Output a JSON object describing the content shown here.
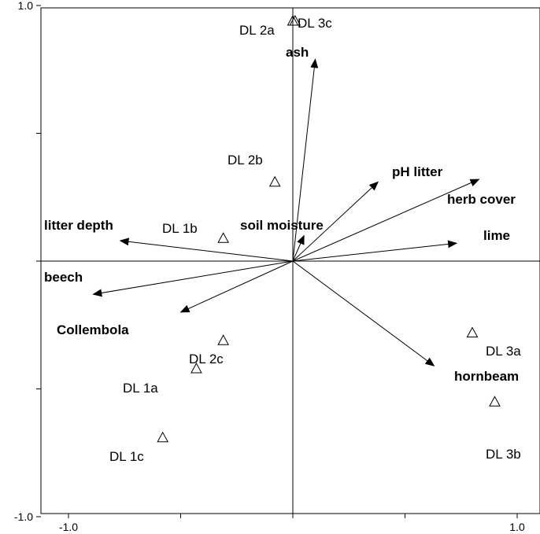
{
  "chart_data": {
    "type": "scatter",
    "subtype": "ordination biplot",
    "xlim": [
      -1.0,
      1.0
    ],
    "ylim": [
      -1.0,
      1.0
    ],
    "x_tick_labels": [
      {
        "value": -1.0,
        "label": "-1.0"
      },
      {
        "value": 1.0,
        "label": "1.0"
      }
    ],
    "y_tick_labels": [
      {
        "value": 1.0,
        "label": "1.0"
      },
      {
        "value": -1.0,
        "label": "-1.0"
      }
    ],
    "x_ticks": [
      -1.0,
      -0.5,
      0,
      0.5,
      1.0
    ],
    "y_ticks": [
      -1.0,
      -0.5,
      0,
      0.5,
      1.0
    ],
    "grid": false,
    "sites": [
      {
        "name": "DL 1a",
        "x": -0.43,
        "y": -0.42
      },
      {
        "name": "DL 1b",
        "x": -0.31,
        "y": 0.09
      },
      {
        "name": "DL 1c",
        "x": -0.58,
        "y": -0.69
      },
      {
        "name": "DL 2a",
        "x": 0.0,
        "y": 0.94
      },
      {
        "name": "DL 2b",
        "x": -0.08,
        "y": 0.31
      },
      {
        "name": "DL 2c",
        "x": -0.31,
        "y": -0.31
      },
      {
        "name": "DL 3a",
        "x": 0.8,
        "y": -0.28
      },
      {
        "name": "DL 3b",
        "x": 0.9,
        "y": -0.55
      },
      {
        "name": "DL 3c",
        "x": 0.01,
        "y": 0.94
      }
    ],
    "arrows": [
      {
        "name": "ash",
        "x": 0.1,
        "y": 0.79
      },
      {
        "name": "pH litter",
        "x": 0.38,
        "y": 0.31
      },
      {
        "name": "herb cover",
        "x": 0.83,
        "y": 0.32
      },
      {
        "name": "lime",
        "x": 0.73,
        "y": 0.07
      },
      {
        "name": "soil moisture",
        "x": 0.05,
        "y": 0.1
      },
      {
        "name": "litter depth",
        "x": -0.77,
        "y": 0.08
      },
      {
        "name": "beech",
        "x": -0.89,
        "y": -0.13
      },
      {
        "name": "Collembola",
        "x": -0.5,
        "y": -0.2
      },
      {
        "name": "hornbeam",
        "x": 0.63,
        "y": -0.41
      }
    ]
  }
}
